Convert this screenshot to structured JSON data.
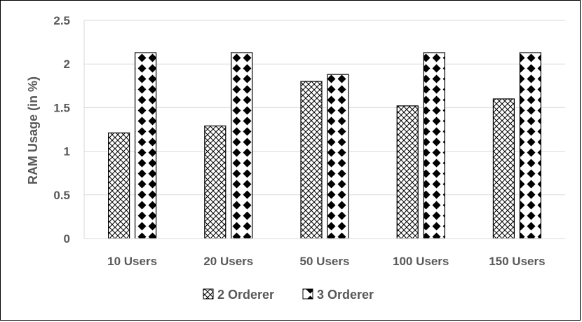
{
  "chart_data": {
    "type": "bar",
    "categories": [
      "10 Users",
      "20 Users",
      "50 Users",
      "100 Users",
      "150 Users"
    ],
    "series": [
      {
        "name": "2 Orderer",
        "values": [
          1.21,
          1.29,
          1.8,
          1.52,
          1.6
        ],
        "pattern": "crosshatch"
      },
      {
        "name": "3 Orderer",
        "values": [
          2.13,
          2.13,
          1.88,
          2.13,
          2.13
        ],
        "pattern": "diamond-checker"
      }
    ],
    "ylabel": "RAM Usage (in %)",
    "xlabel": "",
    "ylim": [
      0,
      2.5
    ],
    "yticks": [
      "0",
      "0.5",
      "1",
      "1.5",
      "2",
      "2.5"
    ],
    "grid": true,
    "legend_position": "bottom",
    "colors": {
      "bar_fill": "#ffffff",
      "pattern": "#000000",
      "grid": "#d9d9d9",
      "text": "#595959"
    }
  }
}
